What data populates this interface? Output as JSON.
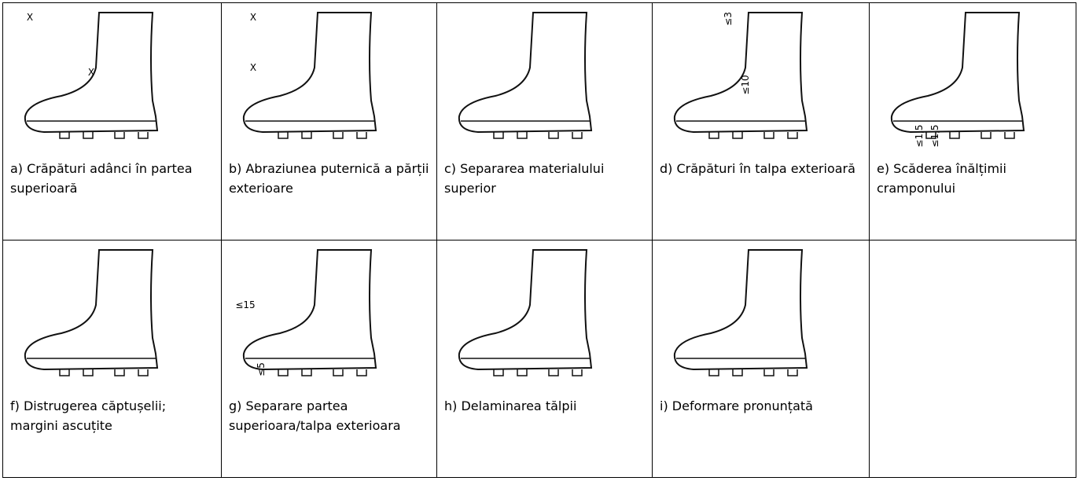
{
  "table": {
    "rows": [
      [
        {
          "caption": "a) Crăpături adânci în partea superioară",
          "marks": [
            "X",
            "X"
          ]
        },
        {
          "caption": "b) Abraziunea puternică a părții exterioare",
          "marks": [
            "X",
            "X"
          ]
        },
        {
          "caption": "c) Separarea materialului superior",
          "marks": []
        },
        {
          "caption": "d) Crăpături în talpa exterioară",
          "marks": [
            "≤3",
            "≤10"
          ]
        },
        {
          "caption": "e) Scăderea înălțimii cramponului",
          "marks": [
            "≤1,5",
            "≤1,5"
          ]
        }
      ],
      [
        {
          "caption": "f) Distrugerea căptușelii; margini ascuțite",
          "marks": []
        },
        {
          "caption": "g) Separare partea superioara/talpa exterioara",
          "marks": [
            "≤15",
            "≤5"
          ]
        },
        {
          "caption": "h) Delaminarea tălpii",
          "marks": []
        },
        {
          "caption": "i) Deformare pronunțată",
          "marks": []
        }
      ]
    ]
  }
}
